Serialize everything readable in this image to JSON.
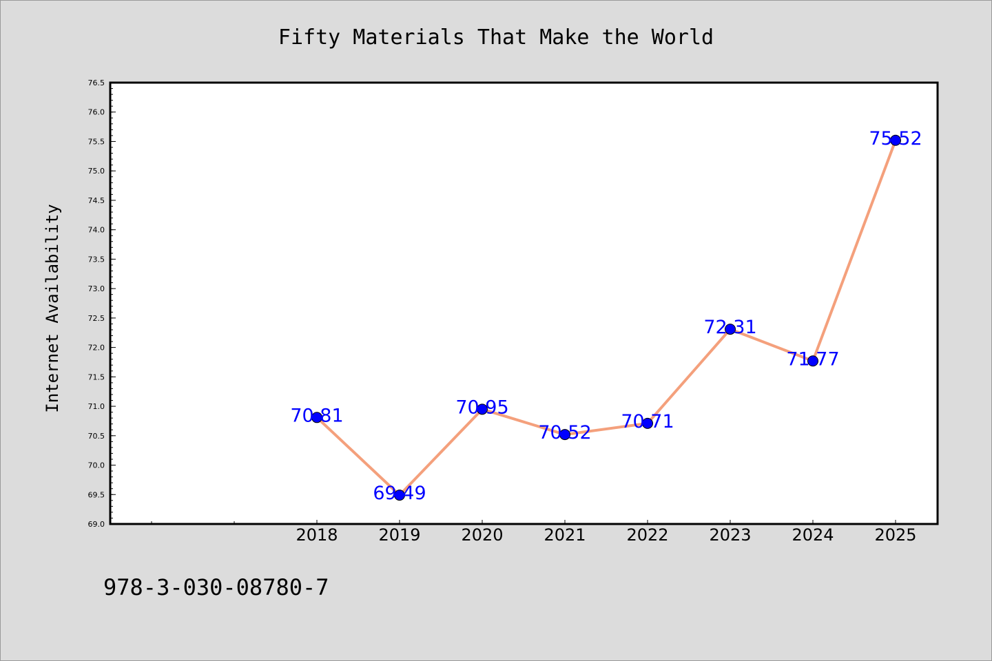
{
  "chart_data": {
    "type": "line",
    "title": "Fifty Materials That Make the World",
    "xlabel": "",
    "ylabel": "Internet Availability",
    "categories": [
      "2018",
      "2019",
      "2020",
      "2021",
      "2022",
      "2023",
      "2024",
      "2025"
    ],
    "values": [
      70.81,
      69.49,
      70.95,
      70.52,
      70.71,
      72.31,
      71.77,
      75.52
    ],
    "data_labels": [
      "70.81",
      "69.49",
      "70.95",
      "70.52",
      "70.71",
      "72.31",
      "71.77",
      "75.52"
    ],
    "ylim": [
      69.0,
      76.5
    ],
    "yticks": [
      "69.0",
      "69.5",
      "70.0",
      "70.5",
      "71.0",
      "71.5",
      "72.0",
      "72.5",
      "73.0",
      "73.5",
      "74.0",
      "74.5",
      "75.0",
      "75.5",
      "76.0",
      "76.5"
    ],
    "grid": false,
    "legend": "none",
    "colors": {
      "line": "#f4a07c",
      "marker": "#0000ff",
      "label": "#0000ff",
      "background": "#dcdcdc",
      "plot_background": "#ffffff"
    }
  },
  "footnote": "978-3-030-08780-7"
}
